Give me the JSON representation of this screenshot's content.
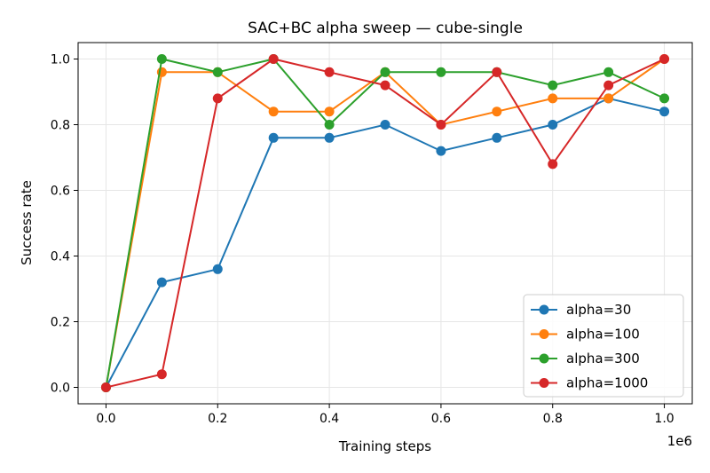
{
  "chart_data": {
    "type": "line",
    "title": "SAC+BC alpha sweep — cube-single",
    "xlabel": "Training steps",
    "ylabel": "Success rate",
    "x_offset_label": "1e6",
    "x": [
      0.0,
      0.1,
      0.2,
      0.3,
      0.4,
      0.5,
      0.6,
      0.7,
      0.8,
      0.9,
      1.0
    ],
    "xlim": [
      -0.05,
      1.05
    ],
    "ylim": [
      -0.05,
      1.05
    ],
    "xticks": [
      "0.0",
      "0.2",
      "0.4",
      "0.6",
      "0.8",
      "1.0"
    ],
    "yticks": [
      "0.0",
      "0.2",
      "0.4",
      "0.6",
      "0.8",
      "1.0"
    ],
    "grid": true,
    "legend_placement": "lower-right",
    "series": [
      {
        "name": "alpha=30",
        "color": "#1f77b4",
        "values": [
          0,
          0.32,
          0.36,
          0.76,
          0.76,
          0.8,
          0.72,
          0.76,
          0.8,
          0.88,
          0.84
        ]
      },
      {
        "name": "alpha=100",
        "color": "#ff7f0e",
        "values": [
          0,
          0.96,
          0.96,
          0.84,
          0.84,
          0.96,
          0.8,
          0.84,
          0.88,
          0.88,
          1.0
        ]
      },
      {
        "name": "alpha=300",
        "color": "#2ca02c",
        "values": [
          0,
          1.0,
          0.96,
          1.0,
          0.8,
          0.96,
          0.96,
          0.96,
          0.92,
          0.96,
          0.88
        ]
      },
      {
        "name": "alpha=1000",
        "color": "#d62728",
        "values": [
          0,
          0.04,
          0.88,
          1.0,
          0.96,
          0.92,
          0.8,
          0.96,
          0.68,
          0.92,
          1.0
        ]
      }
    ]
  }
}
